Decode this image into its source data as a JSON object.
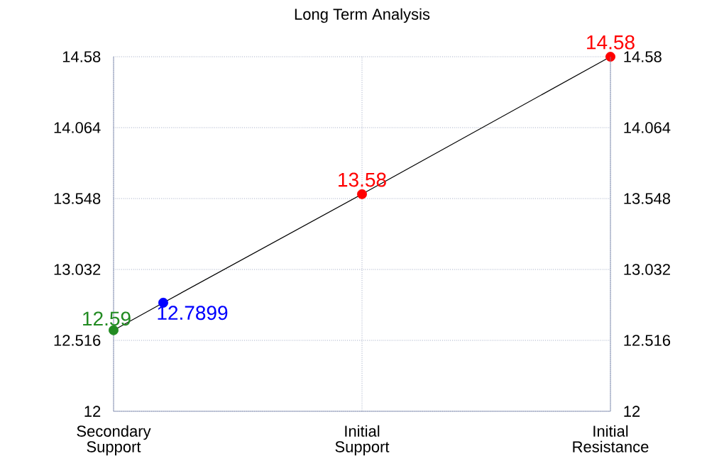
{
  "chart_data": {
    "type": "line",
    "title": "Long Term Analysis",
    "categories": [
      "Secondary Support",
      null,
      null,
      null,
      null,
      "Initial Support",
      null,
      null,
      null,
      null,
      "Initial Resistance"
    ],
    "ylim": [
      12,
      14.58
    ],
    "yticks": [
      12,
      12.516,
      13.032,
      13.548,
      14.064,
      14.58
    ],
    "y2lim": [
      12,
      14.58
    ],
    "y2ticks": [
      12,
      12.516,
      13.032,
      13.548,
      14.064,
      14.58
    ],
    "grid": true,
    "marker": "circle",
    "data_labels": true,
    "series": [
      {
        "color": "#000000",
        "values": [
          12.59,
          12.7899,
          null,
          null,
          null,
          13.58,
          null,
          null,
          null,
          null,
          14.58
        ],
        "colors": [
          "#228b22",
          "#0000ff",
          null,
          null,
          null,
          "#ff0000",
          null,
          null,
          null,
          null,
          "#ff0000"
        ]
      }
    ]
  }
}
